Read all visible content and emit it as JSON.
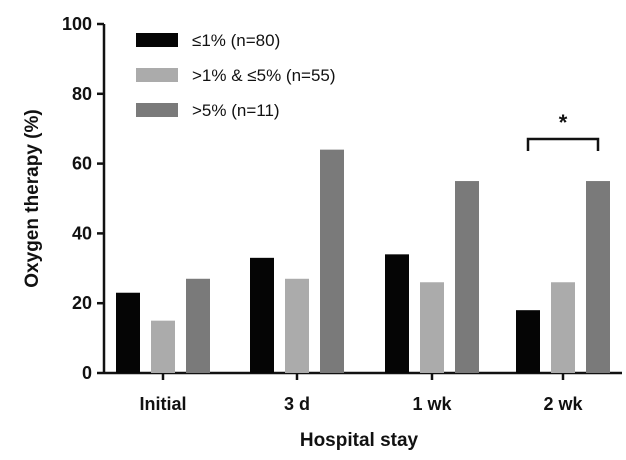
{
  "chart_data": {
    "type": "bar",
    "xlabel": "Hospital stay",
    "ylabel": "Oxygen therapy  (%)",
    "ylim": [
      0,
      100
    ],
    "yticks": [
      0,
      20,
      40,
      60,
      80,
      100
    ],
    "categories": [
      "Initial",
      "3 d",
      "1 wk",
      "2 wk"
    ],
    "series": [
      {
        "name": "≤1% (n=80)",
        "color": "#050505",
        "values": [
          23,
          33,
          34,
          18
        ]
      },
      {
        "name": ">1% & ≤5% (n=55)",
        "color": "#ababab",
        "values": [
          15,
          27,
          26,
          26
        ]
      },
      {
        "name": ">5% (n=11)",
        "color": "#7a7a7a",
        "values": [
          27,
          64,
          55,
          55
        ]
      }
    ],
    "legend_position": "top-left",
    "annotations": [
      {
        "text": "*",
        "category": "2 wk",
        "from_series": 0,
        "to_series": 2,
        "type": "bracket"
      }
    ],
    "grid": false
  }
}
